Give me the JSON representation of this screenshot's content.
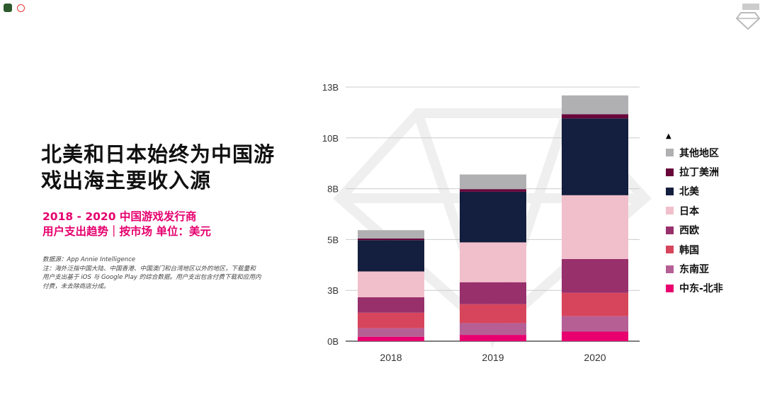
{
  "title_lines": [
    "北美和日本始终为中国游",
    "戏出海主要收入源"
  ],
  "subtitle_lines": [
    "2018 - 2020 中国游戏发行商",
    "用户支出趋势｜按市场 单位：美元"
  ],
  "notes": [
    "数据源：App Annie Intelligence",
    "注：海外泛指中国大陆、中国香港、中国澳门和台湾地区以外的地区，下载量和",
    "用户支出基于 iOS 与 Google Play 的综合数据。用户支出包含付费下载和应用内",
    "付费，未去除商店分成。"
  ],
  "chart_data": {
    "type": "bar",
    "stacked": true,
    "categories": [
      "2018",
      "2019",
      "2020"
    ],
    "ylim": [
      0,
      12.5
    ],
    "yticks": [
      0,
      2.5,
      5,
      7.5,
      10,
      12.5
    ],
    "ytick_labels": [
      "0B",
      "3B",
      "5B",
      "8B",
      "10B",
      "13B"
    ],
    "grid": true,
    "legend_position": "right",
    "series": [
      {
        "name": "中东-北非",
        "color": "#e8006f",
        "values": [
          0.22,
          0.31,
          0.47
        ]
      },
      {
        "name": "东南亚",
        "color": "#b65f95",
        "values": [
          0.42,
          0.58,
          0.76
        ]
      },
      {
        "name": "韩国",
        "color": "#d7455c",
        "values": [
          0.76,
          0.93,
          1.15
        ]
      },
      {
        "name": "西欧",
        "color": "#98306c",
        "values": [
          0.76,
          1.08,
          1.66
        ]
      },
      {
        "name": "日本",
        "color": "#f1bfcb",
        "values": [
          1.27,
          1.96,
          3.14
        ]
      },
      {
        "name": "北美",
        "color": "#141e3e",
        "values": [
          1.54,
          2.49,
          3.78
        ]
      },
      {
        "name": "拉丁美洲",
        "color": "#68063a",
        "values": [
          0.08,
          0.13,
          0.2
        ]
      },
      {
        "name": "其他地区",
        "color": "#b0afb2",
        "values": [
          0.41,
          0.72,
          0.93
        ]
      }
    ]
  }
}
